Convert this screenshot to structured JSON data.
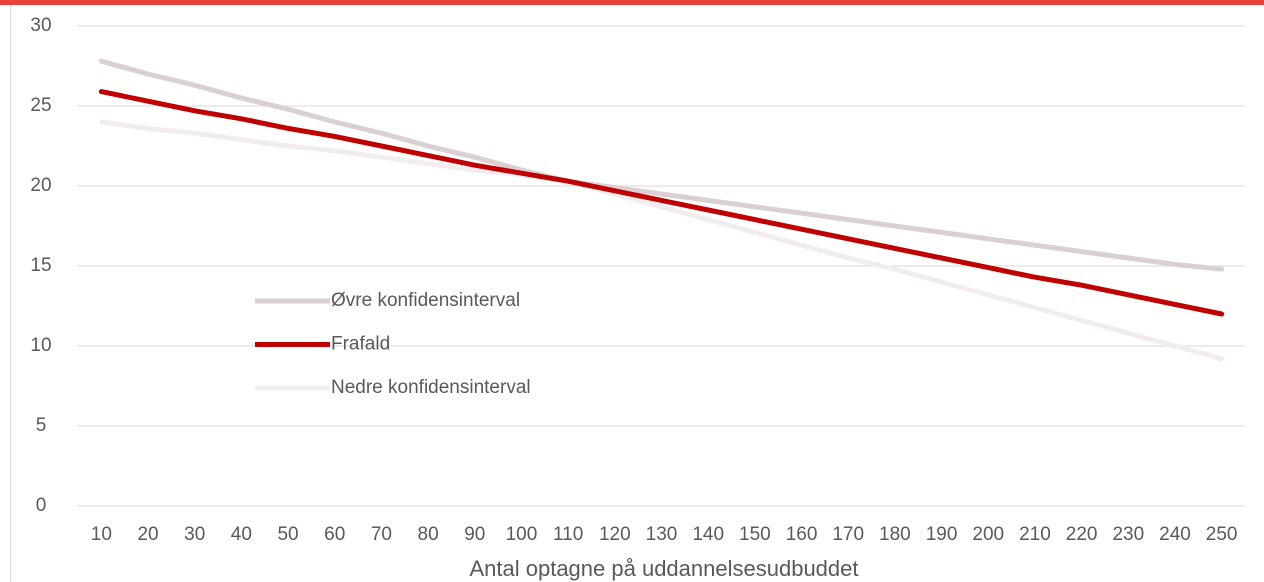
{
  "chart_data": {
    "type": "line",
    "x_label": "Antal optagne på uddannelsesudbuddet",
    "categories": [
      "10",
      "20",
      "30",
      "40",
      "50",
      "60",
      "70",
      "80",
      "90",
      "100",
      "110",
      "120",
      "130",
      "140",
      "150",
      "160",
      "170",
      "180",
      "190",
      "200",
      "210",
      "220",
      "230",
      "240",
      "250"
    ],
    "series": [
      {
        "name": "Øvre konfidensinterval",
        "color": "#dccfd3",
        "values": [
          27.8,
          27.0,
          26.3,
          25.5,
          24.8,
          24.0,
          23.3,
          22.5,
          21.8,
          21.0,
          20.3,
          19.9,
          19.5,
          19.1,
          18.7,
          18.3,
          17.9,
          17.5,
          17.1,
          16.7,
          16.3,
          15.9,
          15.5,
          15.1,
          14.8
        ]
      },
      {
        "name": "Frafald",
        "color": "#c00000",
        "values": [
          25.9,
          25.3,
          24.7,
          24.2,
          23.6,
          23.1,
          22.5,
          21.9,
          21.3,
          20.8,
          20.3,
          19.7,
          19.1,
          18.5,
          17.9,
          17.3,
          16.7,
          16.1,
          15.5,
          14.9,
          14.3,
          13.8,
          13.2,
          12.6,
          12.0
        ]
      },
      {
        "name": "Nedre konfidensinterval",
        "color": "#f3ecee",
        "values": [
          24.0,
          23.6,
          23.3,
          22.9,
          22.5,
          22.2,
          21.8,
          21.4,
          21.0,
          20.7,
          20.3,
          19.5,
          18.7,
          17.9,
          17.1,
          16.3,
          15.5,
          14.8,
          14.0,
          13.2,
          12.4,
          11.6,
          10.8,
          10.0,
          9.2
        ]
      }
    ],
    "ylim": [
      0,
      30
    ],
    "yticks": [
      0,
      5,
      10,
      15,
      20,
      25,
      30
    ],
    "grid": true,
    "legend": "left"
  }
}
